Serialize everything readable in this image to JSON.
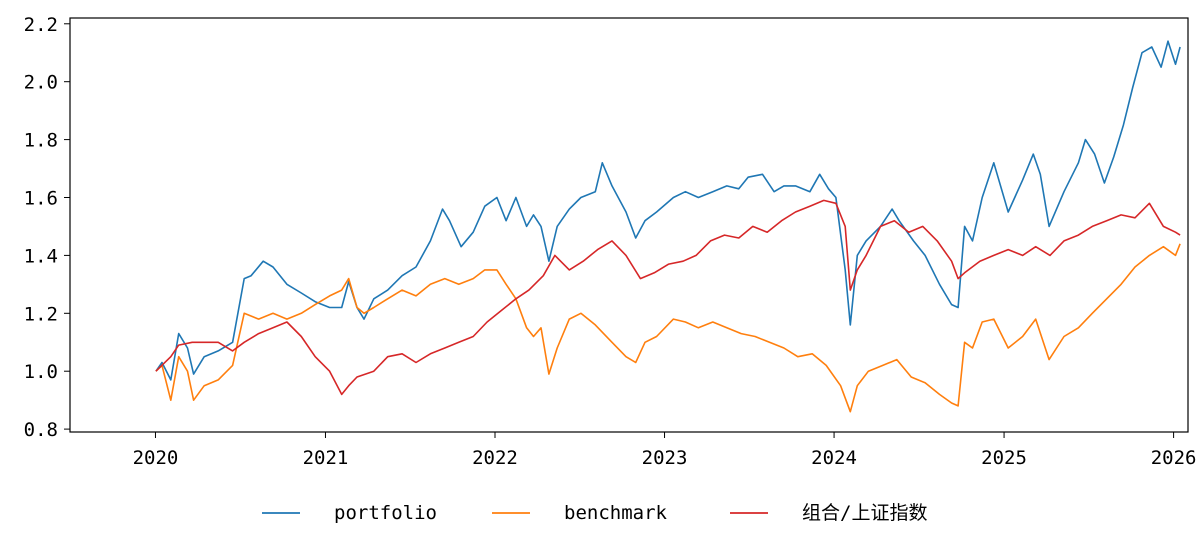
{
  "chart_data": {
    "type": "line",
    "title": "",
    "xlabel": "",
    "ylabel": "",
    "xlim": [
      "2019-07-01",
      "2026-02-01"
    ],
    "ylim": [
      0.79,
      2.22
    ],
    "x_ticks": [
      "2020",
      "2021",
      "2022",
      "2023",
      "2024",
      "2025",
      "2026"
    ],
    "y_ticks": [
      "0.8",
      "1.0",
      "1.2",
      "1.4",
      "1.6",
      "1.8",
      "2.0",
      "2.2"
    ],
    "grid": false,
    "legend_position": "bottom-center",
    "series": [
      {
        "name": "portfolio",
        "color": "#1f77b4",
        "points": [
          [
            "2020-01-02",
            1.0
          ],
          [
            "2020-01-15",
            1.03
          ],
          [
            "2020-02-03",
            0.97
          ],
          [
            "2020-02-20",
            1.13
          ],
          [
            "2020-03-10",
            1.08
          ],
          [
            "2020-03-23",
            0.99
          ],
          [
            "2020-04-15",
            1.05
          ],
          [
            "2020-05-15",
            1.07
          ],
          [
            "2020-06-15",
            1.1
          ],
          [
            "2020-07-10",
            1.32
          ],
          [
            "2020-07-25",
            1.33
          ],
          [
            "2020-08-20",
            1.38
          ],
          [
            "2020-09-10",
            1.36
          ],
          [
            "2020-10-10",
            1.3
          ],
          [
            "2020-11-10",
            1.27
          ],
          [
            "2020-12-10",
            1.24
          ],
          [
            "2021-01-10",
            1.22
          ],
          [
            "2021-02-05",
            1.22
          ],
          [
            "2021-02-20",
            1.31
          ],
          [
            "2021-03-10",
            1.22
          ],
          [
            "2021-03-25",
            1.18
          ],
          [
            "2021-04-15",
            1.25
          ],
          [
            "2021-05-15",
            1.28
          ],
          [
            "2021-06-15",
            1.33
          ],
          [
            "2021-07-15",
            1.36
          ],
          [
            "2021-08-15",
            1.45
          ],
          [
            "2021-09-10",
            1.56
          ],
          [
            "2021-09-25",
            1.52
          ],
          [
            "2021-10-20",
            1.43
          ],
          [
            "2021-11-15",
            1.48
          ],
          [
            "2021-12-10",
            1.57
          ],
          [
            "2022-01-05",
            1.6
          ],
          [
            "2022-01-25",
            1.52
          ],
          [
            "2022-02-15",
            1.6
          ],
          [
            "2022-03-10",
            1.5
          ],
          [
            "2022-03-25",
            1.54
          ],
          [
            "2022-04-10",
            1.5
          ],
          [
            "2022-04-27",
            1.38
          ],
          [
            "2022-05-15",
            1.5
          ],
          [
            "2022-06-10",
            1.56
          ],
          [
            "2022-07-05",
            1.6
          ],
          [
            "2022-08-05",
            1.62
          ],
          [
            "2022-08-20",
            1.72
          ],
          [
            "2022-09-10",
            1.64
          ],
          [
            "2022-10-10",
            1.55
          ],
          [
            "2022-10-31",
            1.46
          ],
          [
            "2022-11-20",
            1.52
          ],
          [
            "2022-12-15",
            1.55
          ],
          [
            "2023-01-20",
            1.6
          ],
          [
            "2023-02-15",
            1.62
          ],
          [
            "2023-03-15",
            1.6
          ],
          [
            "2023-04-15",
            1.62
          ],
          [
            "2023-05-15",
            1.64
          ],
          [
            "2023-06-10",
            1.63
          ],
          [
            "2023-06-30",
            1.67
          ],
          [
            "2023-07-31",
            1.68
          ],
          [
            "2023-08-25",
            1.62
          ],
          [
            "2023-09-15",
            1.64
          ],
          [
            "2023-10-10",
            1.64
          ],
          [
            "2023-11-10",
            1.62
          ],
          [
            "2023-12-01",
            1.68
          ],
          [
            "2023-12-20",
            1.63
          ],
          [
            "2024-01-05",
            1.6
          ],
          [
            "2024-01-25",
            1.35
          ],
          [
            "2024-02-05",
            1.16
          ],
          [
            "2024-02-20",
            1.4
          ],
          [
            "2024-03-10",
            1.45
          ],
          [
            "2024-04-10",
            1.5
          ],
          [
            "2024-05-05",
            1.56
          ],
          [
            "2024-05-20",
            1.52
          ],
          [
            "2024-06-20",
            1.45
          ],
          [
            "2024-07-15",
            1.4
          ],
          [
            "2024-08-15",
            1.3
          ],
          [
            "2024-09-10",
            1.23
          ],
          [
            "2024-09-24",
            1.22
          ],
          [
            "2024-10-08",
            1.5
          ],
          [
            "2024-10-25",
            1.45
          ],
          [
            "2024-11-15",
            1.6
          ],
          [
            "2024-12-10",
            1.72
          ],
          [
            "2025-01-10",
            1.55
          ],
          [
            "2025-02-10",
            1.66
          ],
          [
            "2025-03-05",
            1.75
          ],
          [
            "2025-03-20",
            1.68
          ],
          [
            "2025-04-08",
            1.5
          ],
          [
            "2025-05-10",
            1.62
          ],
          [
            "2025-06-10",
            1.72
          ],
          [
            "2025-06-25",
            1.8
          ],
          [
            "2025-07-15",
            1.75
          ],
          [
            "2025-08-05",
            1.65
          ],
          [
            "2025-08-25",
            1.74
          ],
          [
            "2025-09-15",
            1.85
          ],
          [
            "2025-10-05",
            1.98
          ],
          [
            "2025-10-25",
            2.1
          ],
          [
            "2025-11-15",
            2.12
          ],
          [
            "2025-12-05",
            2.05
          ],
          [
            "2025-12-20",
            2.14
          ],
          [
            "2026-01-05",
            2.06
          ],
          [
            "2026-01-15",
            2.12
          ]
        ]
      },
      {
        "name": "benchmark",
        "color": "#ff7f0e",
        "points": [
          [
            "2020-01-02",
            1.0
          ],
          [
            "2020-01-15",
            1.02
          ],
          [
            "2020-02-03",
            0.9
          ],
          [
            "2020-02-20",
            1.05
          ],
          [
            "2020-03-10",
            1.0
          ],
          [
            "2020-03-23",
            0.9
          ],
          [
            "2020-04-15",
            0.95
          ],
          [
            "2020-05-15",
            0.97
          ],
          [
            "2020-06-15",
            1.02
          ],
          [
            "2020-07-10",
            1.2
          ],
          [
            "2020-08-10",
            1.18
          ],
          [
            "2020-09-10",
            1.2
          ],
          [
            "2020-10-10",
            1.18
          ],
          [
            "2020-11-10",
            1.2
          ],
          [
            "2020-12-10",
            1.23
          ],
          [
            "2021-01-10",
            1.26
          ],
          [
            "2021-02-05",
            1.28
          ],
          [
            "2021-02-20",
            1.32
          ],
          [
            "2021-03-10",
            1.22
          ],
          [
            "2021-03-25",
            1.2
          ],
          [
            "2021-04-15",
            1.22
          ],
          [
            "2021-05-15",
            1.25
          ],
          [
            "2021-06-15",
            1.28
          ],
          [
            "2021-07-15",
            1.26
          ],
          [
            "2021-08-15",
            1.3
          ],
          [
            "2021-09-15",
            1.32
          ],
          [
            "2021-10-15",
            1.3
          ],
          [
            "2021-11-15",
            1.32
          ],
          [
            "2021-12-10",
            1.35
          ],
          [
            "2022-01-05",
            1.35
          ],
          [
            "2022-01-25",
            1.3
          ],
          [
            "2022-02-15",
            1.25
          ],
          [
            "2022-03-10",
            1.15
          ],
          [
            "2022-03-25",
            1.12
          ],
          [
            "2022-04-10",
            1.15
          ],
          [
            "2022-04-27",
            0.99
          ],
          [
            "2022-05-15",
            1.08
          ],
          [
            "2022-06-10",
            1.18
          ],
          [
            "2022-07-05",
            1.2
          ],
          [
            "2022-08-05",
            1.16
          ],
          [
            "2022-09-10",
            1.1
          ],
          [
            "2022-10-10",
            1.05
          ],
          [
            "2022-10-31",
            1.03
          ],
          [
            "2022-11-20",
            1.1
          ],
          [
            "2022-12-15",
            1.12
          ],
          [
            "2023-01-20",
            1.18
          ],
          [
            "2023-02-15",
            1.17
          ],
          [
            "2023-03-15",
            1.15
          ],
          [
            "2023-04-15",
            1.17
          ],
          [
            "2023-05-15",
            1.15
          ],
          [
            "2023-06-15",
            1.13
          ],
          [
            "2023-07-15",
            1.12
          ],
          [
            "2023-08-15",
            1.1
          ],
          [
            "2023-09-15",
            1.08
          ],
          [
            "2023-10-15",
            1.05
          ],
          [
            "2023-11-15",
            1.06
          ],
          [
            "2023-12-15",
            1.02
          ],
          [
            "2024-01-15",
            0.95
          ],
          [
            "2024-02-05",
            0.86
          ],
          [
            "2024-02-20",
            0.95
          ],
          [
            "2024-03-15",
            1.0
          ],
          [
            "2024-04-15",
            1.02
          ],
          [
            "2024-05-15",
            1.04
          ],
          [
            "2024-06-15",
            0.98
          ],
          [
            "2024-07-15",
            0.96
          ],
          [
            "2024-08-15",
            0.92
          ],
          [
            "2024-09-10",
            0.89
          ],
          [
            "2024-09-24",
            0.88
          ],
          [
            "2024-10-08",
            1.1
          ],
          [
            "2024-10-25",
            1.08
          ],
          [
            "2024-11-15",
            1.17
          ],
          [
            "2024-12-10",
            1.18
          ],
          [
            "2025-01-10",
            1.08
          ],
          [
            "2025-02-10",
            1.12
          ],
          [
            "2025-03-10",
            1.18
          ],
          [
            "2025-04-08",
            1.04
          ],
          [
            "2025-05-10",
            1.12
          ],
          [
            "2025-06-10",
            1.15
          ],
          [
            "2025-07-10",
            1.2
          ],
          [
            "2025-08-10",
            1.25
          ],
          [
            "2025-09-10",
            1.3
          ],
          [
            "2025-10-10",
            1.36
          ],
          [
            "2025-11-10",
            1.4
          ],
          [
            "2025-12-10",
            1.43
          ],
          [
            "2026-01-05",
            1.4
          ],
          [
            "2026-01-15",
            1.44
          ]
        ]
      },
      {
        "name": "组合/上证指数",
        "color": "#d62728",
        "points": [
          [
            "2020-01-02",
            1.0
          ],
          [
            "2020-02-03",
            1.05
          ],
          [
            "2020-02-20",
            1.09
          ],
          [
            "2020-03-20",
            1.1
          ],
          [
            "2020-05-15",
            1.1
          ],
          [
            "2020-06-15",
            1.07
          ],
          [
            "2020-07-10",
            1.1
          ],
          [
            "2020-08-10",
            1.13
          ],
          [
            "2020-09-10",
            1.15
          ],
          [
            "2020-10-10",
            1.17
          ],
          [
            "2020-11-10",
            1.12
          ],
          [
            "2020-12-10",
            1.05
          ],
          [
            "2021-01-10",
            1.0
          ],
          [
            "2021-02-05",
            0.92
          ],
          [
            "2021-02-20",
            0.95
          ],
          [
            "2021-03-10",
            0.98
          ],
          [
            "2021-04-15",
            1.0
          ],
          [
            "2021-05-15",
            1.05
          ],
          [
            "2021-06-15",
            1.06
          ],
          [
            "2021-07-15",
            1.03
          ],
          [
            "2021-08-15",
            1.06
          ],
          [
            "2021-09-15",
            1.08
          ],
          [
            "2021-10-15",
            1.1
          ],
          [
            "2021-11-15",
            1.12
          ],
          [
            "2021-12-15",
            1.17
          ],
          [
            "2022-01-15",
            1.21
          ],
          [
            "2022-02-15",
            1.25
          ],
          [
            "2022-03-15",
            1.28
          ],
          [
            "2022-04-15",
            1.33
          ],
          [
            "2022-05-10",
            1.4
          ],
          [
            "2022-06-10",
            1.35
          ],
          [
            "2022-07-10",
            1.38
          ],
          [
            "2022-08-10",
            1.42
          ],
          [
            "2022-09-10",
            1.45
          ],
          [
            "2022-10-10",
            1.4
          ],
          [
            "2022-11-10",
            1.32
          ],
          [
            "2022-12-10",
            1.34
          ],
          [
            "2023-01-10",
            1.37
          ],
          [
            "2023-02-10",
            1.38
          ],
          [
            "2023-03-10",
            1.4
          ],
          [
            "2023-04-10",
            1.45
          ],
          [
            "2023-05-10",
            1.47
          ],
          [
            "2023-06-10",
            1.46
          ],
          [
            "2023-07-10",
            1.5
          ],
          [
            "2023-08-10",
            1.48
          ],
          [
            "2023-09-10",
            1.52
          ],
          [
            "2023-10-10",
            1.55
          ],
          [
            "2023-11-10",
            1.57
          ],
          [
            "2023-12-10",
            1.59
          ],
          [
            "2024-01-05",
            1.58
          ],
          [
            "2024-01-25",
            1.5
          ],
          [
            "2024-02-05",
            1.28
          ],
          [
            "2024-02-20",
            1.35
          ],
          [
            "2024-03-10",
            1.4
          ],
          [
            "2024-04-10",
            1.5
          ],
          [
            "2024-05-10",
            1.52
          ],
          [
            "2024-06-10",
            1.48
          ],
          [
            "2024-07-10",
            1.5
          ],
          [
            "2024-08-10",
            1.45
          ],
          [
            "2024-09-10",
            1.38
          ],
          [
            "2024-09-24",
            1.32
          ],
          [
            "2024-10-08",
            1.34
          ],
          [
            "2024-11-10",
            1.38
          ],
          [
            "2024-12-10",
            1.4
          ],
          [
            "2025-01-10",
            1.42
          ],
          [
            "2025-02-10",
            1.4
          ],
          [
            "2025-03-10",
            1.43
          ],
          [
            "2025-04-10",
            1.4
          ],
          [
            "2025-05-10",
            1.45
          ],
          [
            "2025-06-10",
            1.47
          ],
          [
            "2025-07-10",
            1.5
          ],
          [
            "2025-08-10",
            1.52
          ],
          [
            "2025-09-10",
            1.54
          ],
          [
            "2025-10-10",
            1.53
          ],
          [
            "2025-11-10",
            1.58
          ],
          [
            "2025-12-10",
            1.5
          ],
          [
            "2026-01-05",
            1.48
          ],
          [
            "2026-01-15",
            1.47
          ]
        ]
      }
    ]
  }
}
